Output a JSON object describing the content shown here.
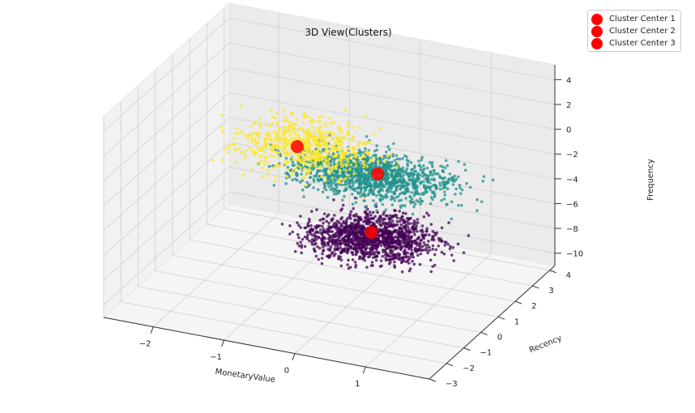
{
  "chart_data": {
    "type": "scatter",
    "title": "3D View(Clusters)",
    "xlabel": "MonetaryValue",
    "ylabel": "Recency",
    "zlabel": "Frequency",
    "x_ticks": [
      "−2",
      "−1",
      "0",
      "1"
    ],
    "y_ticks": [
      "−3",
      "−2",
      "−1",
      "0",
      "1",
      "2",
      "3",
      "4"
    ],
    "z_ticks": [
      "−10",
      "−8",
      "−6",
      "−4",
      "−2",
      "0",
      "2",
      "4"
    ],
    "xlim": [
      -2.7,
      1.9
    ],
    "ylim": [
      -3.0,
      4.3
    ],
    "zlim": [
      -11.0,
      5.2
    ],
    "grid": true,
    "legend_position": "top-right",
    "cluster_colors": [
      "#fde725",
      "#21918c",
      "#440154"
    ],
    "center_color": "#ff0000",
    "series": [
      {
        "cluster": "yellow",
        "color": "#fde725",
        "count": 650,
        "center": [
          -0.4,
          -0.7,
          2.3
        ],
        "spread": [
          0.7,
          1.0,
          0.8
        ]
      },
      {
        "cluster": "teal",
        "color": "#21918c",
        "count": 1300,
        "center": [
          0.2,
          0.8,
          -1.2
        ],
        "spread": [
          0.8,
          0.9,
          0.6
        ]
      },
      {
        "cluster": "purple",
        "color": "#440154",
        "count": 1300,
        "center": [
          0.5,
          -0.5,
          -4.2
        ],
        "spread": [
          0.6,
          0.9,
          0.7
        ]
      }
    ],
    "centers": [
      {
        "label": "Cluster Center 1",
        "x": -0.5,
        "y": -0.8,
        "z": 2.4
      },
      {
        "label": "Cluster Center 2",
        "x": 0.2,
        "y": 1.0,
        "z": -1.3
      },
      {
        "label": "Cluster Center 3",
        "x": 0.4,
        "y": -0.2,
        "z": -4.3
      }
    ]
  }
}
